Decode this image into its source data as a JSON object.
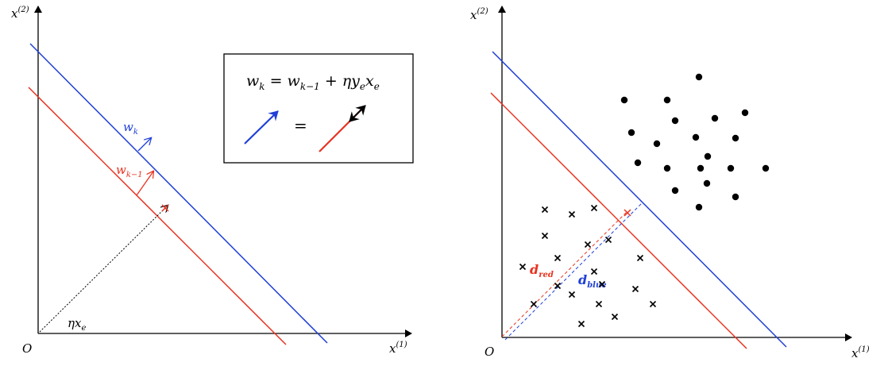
{
  "left_panel": {
    "y_axis_label": {
      "base": "x",
      "sup": "(2)"
    },
    "x_axis_label": {
      "base": "x",
      "sup": "(1)"
    },
    "origin_label": "O",
    "w_k_label": {
      "base": "w",
      "sub": "k"
    },
    "w_k1_label": {
      "base": "w",
      "sub": "k−1"
    },
    "eta_x_label": {
      "base": "ηx",
      "sub": "e"
    },
    "formula": [
      {
        "base": "w",
        "sub": "k"
      },
      {
        "base": " = w",
        "sub": "k−1"
      },
      {
        "base": " + ηy",
        "sub": "e"
      },
      {
        "base": "x",
        "sub": "e"
      }
    ],
    "equals": "="
  },
  "right_panel": {
    "y_axis_label": {
      "base": "x",
      "sup": "(2)"
    },
    "x_axis_label": {
      "base": "x",
      "sup": "(1)"
    },
    "origin_label": "O",
    "d_red_label": {
      "base": "d",
      "sub": "red"
    },
    "d_blue_label": {
      "base": "d",
      "sub": "blue"
    }
  }
}
